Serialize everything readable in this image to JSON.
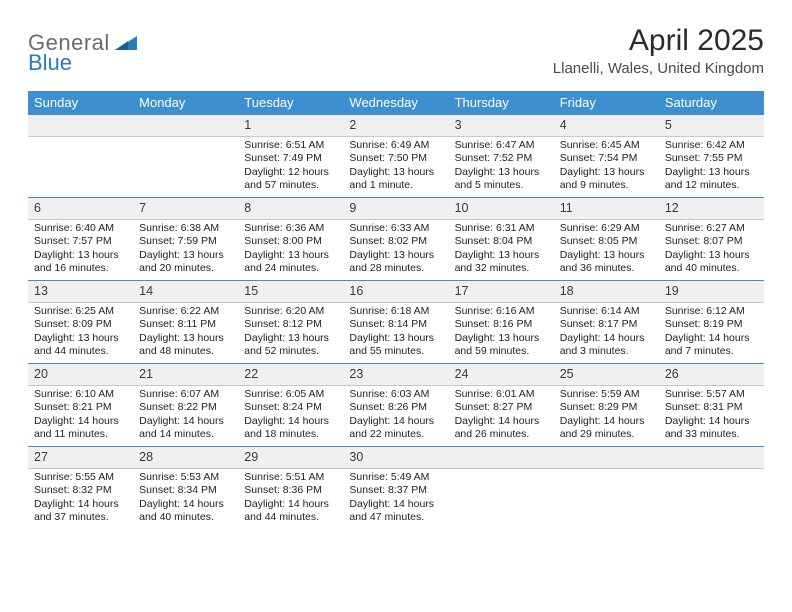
{
  "brand": {
    "word1": "General",
    "word2": "Blue"
  },
  "title": "April 2025",
  "location": "Llanelli, Wales, United Kingdom",
  "colors": {
    "header_bg": "#3e8fcf",
    "header_text": "#ffffff",
    "daynum_bg": "#eff0ef",
    "row_border": "#3e8fcf",
    "logo_gray": "#6b6b6b",
    "logo_blue": "#2b7bbf",
    "text": "#222222",
    "title_text": "#2b2b2b",
    "location_text": "#4a4a4a"
  },
  "fonts": {
    "month_title_pt": 30,
    "location_pt": 15,
    "weekday_pt": 13,
    "daynum_pt": 12.5,
    "body_pt": 10.5
  },
  "weekdays": [
    "Sunday",
    "Monday",
    "Tuesday",
    "Wednesday",
    "Thursday",
    "Friday",
    "Saturday"
  ],
  "weeks": [
    [
      {
        "blank": true
      },
      {
        "blank": true
      },
      {
        "day": "1",
        "sunrise": "Sunrise: 6:51 AM",
        "sunset": "Sunset: 7:49 PM",
        "daylight": "Daylight: 12 hours and 57 minutes."
      },
      {
        "day": "2",
        "sunrise": "Sunrise: 6:49 AM",
        "sunset": "Sunset: 7:50 PM",
        "daylight": "Daylight: 13 hours and 1 minute."
      },
      {
        "day": "3",
        "sunrise": "Sunrise: 6:47 AM",
        "sunset": "Sunset: 7:52 PM",
        "daylight": "Daylight: 13 hours and 5 minutes."
      },
      {
        "day": "4",
        "sunrise": "Sunrise: 6:45 AM",
        "sunset": "Sunset: 7:54 PM",
        "daylight": "Daylight: 13 hours and 9 minutes."
      },
      {
        "day": "5",
        "sunrise": "Sunrise: 6:42 AM",
        "sunset": "Sunset: 7:55 PM",
        "daylight": "Daylight: 13 hours and 12 minutes."
      }
    ],
    [
      {
        "day": "6",
        "sunrise": "Sunrise: 6:40 AM",
        "sunset": "Sunset: 7:57 PM",
        "daylight": "Daylight: 13 hours and 16 minutes."
      },
      {
        "day": "7",
        "sunrise": "Sunrise: 6:38 AM",
        "sunset": "Sunset: 7:59 PM",
        "daylight": "Daylight: 13 hours and 20 minutes."
      },
      {
        "day": "8",
        "sunrise": "Sunrise: 6:36 AM",
        "sunset": "Sunset: 8:00 PM",
        "daylight": "Daylight: 13 hours and 24 minutes."
      },
      {
        "day": "9",
        "sunrise": "Sunrise: 6:33 AM",
        "sunset": "Sunset: 8:02 PM",
        "daylight": "Daylight: 13 hours and 28 minutes."
      },
      {
        "day": "10",
        "sunrise": "Sunrise: 6:31 AM",
        "sunset": "Sunset: 8:04 PM",
        "daylight": "Daylight: 13 hours and 32 minutes."
      },
      {
        "day": "11",
        "sunrise": "Sunrise: 6:29 AM",
        "sunset": "Sunset: 8:05 PM",
        "daylight": "Daylight: 13 hours and 36 minutes."
      },
      {
        "day": "12",
        "sunrise": "Sunrise: 6:27 AM",
        "sunset": "Sunset: 8:07 PM",
        "daylight": "Daylight: 13 hours and 40 minutes."
      }
    ],
    [
      {
        "day": "13",
        "sunrise": "Sunrise: 6:25 AM",
        "sunset": "Sunset: 8:09 PM",
        "daylight": "Daylight: 13 hours and 44 minutes."
      },
      {
        "day": "14",
        "sunrise": "Sunrise: 6:22 AM",
        "sunset": "Sunset: 8:11 PM",
        "daylight": "Daylight: 13 hours and 48 minutes."
      },
      {
        "day": "15",
        "sunrise": "Sunrise: 6:20 AM",
        "sunset": "Sunset: 8:12 PM",
        "daylight": "Daylight: 13 hours and 52 minutes."
      },
      {
        "day": "16",
        "sunrise": "Sunrise: 6:18 AM",
        "sunset": "Sunset: 8:14 PM",
        "daylight": "Daylight: 13 hours and 55 minutes."
      },
      {
        "day": "17",
        "sunrise": "Sunrise: 6:16 AM",
        "sunset": "Sunset: 8:16 PM",
        "daylight": "Daylight: 13 hours and 59 minutes."
      },
      {
        "day": "18",
        "sunrise": "Sunrise: 6:14 AM",
        "sunset": "Sunset: 8:17 PM",
        "daylight": "Daylight: 14 hours and 3 minutes."
      },
      {
        "day": "19",
        "sunrise": "Sunrise: 6:12 AM",
        "sunset": "Sunset: 8:19 PM",
        "daylight": "Daylight: 14 hours and 7 minutes."
      }
    ],
    [
      {
        "day": "20",
        "sunrise": "Sunrise: 6:10 AM",
        "sunset": "Sunset: 8:21 PM",
        "daylight": "Daylight: 14 hours and 11 minutes."
      },
      {
        "day": "21",
        "sunrise": "Sunrise: 6:07 AM",
        "sunset": "Sunset: 8:22 PM",
        "daylight": "Daylight: 14 hours and 14 minutes."
      },
      {
        "day": "22",
        "sunrise": "Sunrise: 6:05 AM",
        "sunset": "Sunset: 8:24 PM",
        "daylight": "Daylight: 14 hours and 18 minutes."
      },
      {
        "day": "23",
        "sunrise": "Sunrise: 6:03 AM",
        "sunset": "Sunset: 8:26 PM",
        "daylight": "Daylight: 14 hours and 22 minutes."
      },
      {
        "day": "24",
        "sunrise": "Sunrise: 6:01 AM",
        "sunset": "Sunset: 8:27 PM",
        "daylight": "Daylight: 14 hours and 26 minutes."
      },
      {
        "day": "25",
        "sunrise": "Sunrise: 5:59 AM",
        "sunset": "Sunset: 8:29 PM",
        "daylight": "Daylight: 14 hours and 29 minutes."
      },
      {
        "day": "26",
        "sunrise": "Sunrise: 5:57 AM",
        "sunset": "Sunset: 8:31 PM",
        "daylight": "Daylight: 14 hours and 33 minutes."
      }
    ],
    [
      {
        "day": "27",
        "sunrise": "Sunrise: 5:55 AM",
        "sunset": "Sunset: 8:32 PM",
        "daylight": "Daylight: 14 hours and 37 minutes."
      },
      {
        "day": "28",
        "sunrise": "Sunrise: 5:53 AM",
        "sunset": "Sunset: 8:34 PM",
        "daylight": "Daylight: 14 hours and 40 minutes."
      },
      {
        "day": "29",
        "sunrise": "Sunrise: 5:51 AM",
        "sunset": "Sunset: 8:36 PM",
        "daylight": "Daylight: 14 hours and 44 minutes."
      },
      {
        "day": "30",
        "sunrise": "Sunrise: 5:49 AM",
        "sunset": "Sunset: 8:37 PM",
        "daylight": "Daylight: 14 hours and 47 minutes."
      },
      {
        "blank": true
      },
      {
        "blank": true
      },
      {
        "blank": true
      }
    ]
  ]
}
